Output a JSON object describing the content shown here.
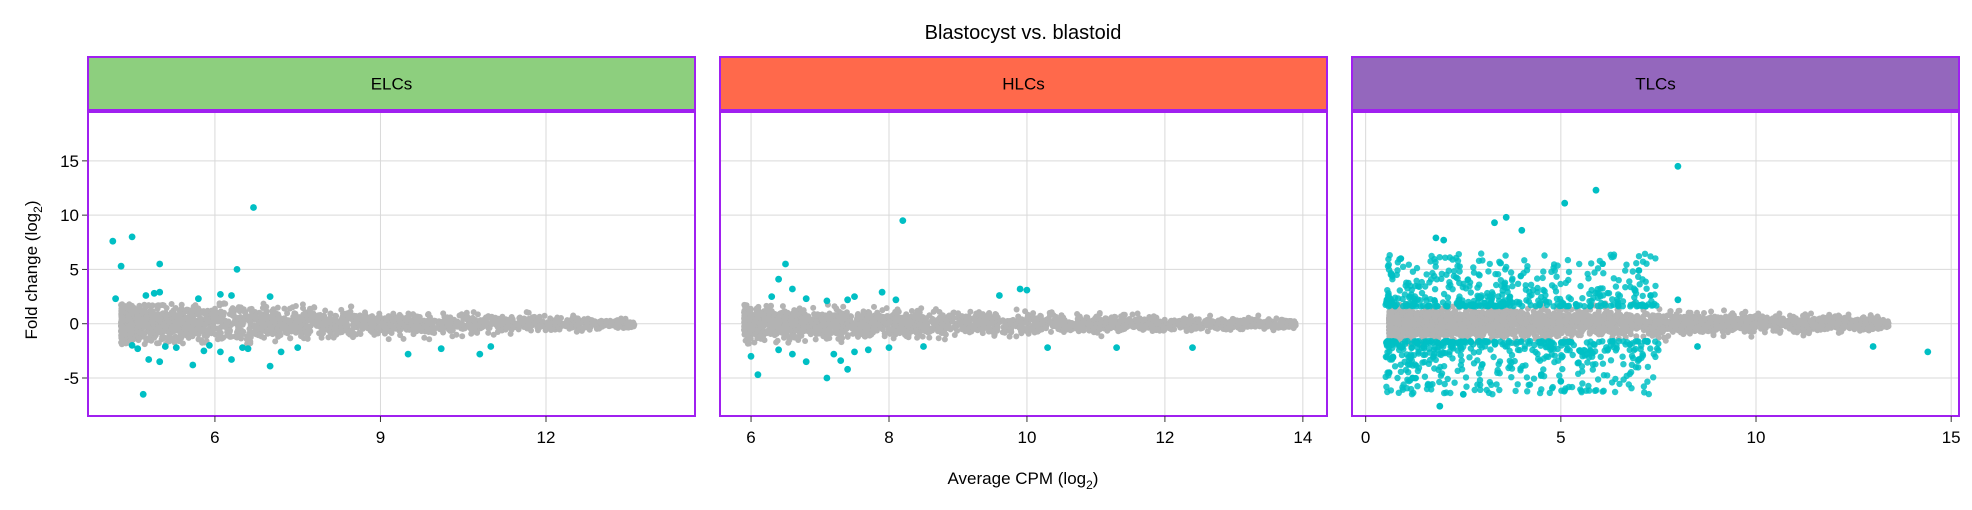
{
  "chart_data": {
    "type": "scatter",
    "title": "Blastocyst vs. blastoid",
    "xlabel": "Average CPM (log",
    "xlabel_sub": "2",
    "xlabel_end": ")",
    "ylabel": "Fold change (log",
    "ylabel_sub": "2",
    "ylabel_end": ")",
    "ylim": [
      -8.5,
      19.5
    ],
    "yticks": [
      15,
      10,
      5,
      0,
      -5
    ],
    "y_tick_labels": [
      "15",
      "10",
      "5",
      "0",
      "-5"
    ],
    "grid": true,
    "colors": {
      "not_significant": "#b3b3b3",
      "significant": "#00bfc4",
      "strip_border": "#a020f0",
      "grid": "#d9d9d9"
    },
    "panels": [
      {
        "label": "ELCs",
        "strip_color": "#8dcf7e",
        "xlim": [
          3.7,
          14.7
        ],
        "xticks": [
          6,
          9,
          12
        ],
        "x_tick_labels": [
          "6",
          "9",
          "12"
        ],
        "bulk": {
          "xmin": 4.3,
          "xmax": 13.6,
          "spread_left": 1.6,
          "spread_right": 0.4
        },
        "significant": [
          [
            4.15,
            7.6
          ],
          [
            4.3,
            5.3
          ],
          [
            4.5,
            8.0
          ],
          [
            4.2,
            2.3
          ],
          [
            5.0,
            5.5
          ],
          [
            4.9,
            2.8
          ],
          [
            4.75,
            2.6
          ],
          [
            5.0,
            2.9
          ],
          [
            5.7,
            2.3
          ],
          [
            6.4,
            5.0
          ],
          [
            6.3,
            2.6
          ],
          [
            6.7,
            10.7
          ],
          [
            7.0,
            2.5
          ],
          [
            6.1,
            2.7
          ],
          [
            4.7,
            -6.5
          ],
          [
            4.8,
            -3.3
          ],
          [
            5.0,
            -3.5
          ],
          [
            4.6,
            -2.3
          ],
          [
            5.3,
            -2.2
          ],
          [
            5.6,
            -3.8
          ],
          [
            5.8,
            -2.5
          ],
          [
            6.1,
            -2.6
          ],
          [
            6.3,
            -3.3
          ],
          [
            6.6,
            -2.3
          ],
          [
            7.0,
            -3.9
          ],
          [
            7.2,
            -2.6
          ],
          [
            7.5,
            -2.2
          ],
          [
            9.5,
            -2.8
          ],
          [
            10.1,
            -2.3
          ],
          [
            10.8,
            -2.8
          ],
          [
            11.0,
            -2.1
          ],
          [
            4.5,
            -2.0
          ],
          [
            5.1,
            -2.1
          ],
          [
            5.9,
            -2.0
          ],
          [
            6.5,
            -2.2
          ]
        ]
      },
      {
        "label": "HLCs",
        "strip_color": "#ff694b",
        "xlim": [
          5.55,
          14.35
        ],
        "xticks": [
          6,
          8,
          10,
          12,
          14
        ],
        "x_tick_labels": [
          "6",
          "8",
          "10",
          "12",
          "14"
        ],
        "bulk": {
          "xmin": 5.9,
          "xmax": 13.9,
          "spread_left": 1.3,
          "spread_right": 0.35
        },
        "significant": [
          [
            6.4,
            4.1
          ],
          [
            6.5,
            5.5
          ],
          [
            6.6,
            3.2
          ],
          [
            6.3,
            2.5
          ],
          [
            6.8,
            2.3
          ],
          [
            7.1,
            2.1
          ],
          [
            7.4,
            2.2
          ],
          [
            7.5,
            2.5
          ],
          [
            7.9,
            2.9
          ],
          [
            8.1,
            2.2
          ],
          [
            8.2,
            9.5
          ],
          [
            9.9,
            3.2
          ],
          [
            9.6,
            2.6
          ],
          [
            10.0,
            3.1
          ],
          [
            6.1,
            -4.7
          ],
          [
            6.0,
            -3.0
          ],
          [
            6.4,
            -2.4
          ],
          [
            6.6,
            -2.8
          ],
          [
            6.8,
            -3.5
          ],
          [
            7.1,
            -5.0
          ],
          [
            7.3,
            -3.4
          ],
          [
            7.5,
            -2.6
          ],
          [
            7.7,
            -2.4
          ],
          [
            7.4,
            -4.2
          ],
          [
            8.0,
            -2.2
          ],
          [
            8.5,
            -2.1
          ],
          [
            10.3,
            -2.2
          ],
          [
            11.3,
            -2.2
          ],
          [
            12.4,
            -2.2
          ],
          [
            7.2,
            -2.8
          ]
        ]
      },
      {
        "label": "TLCs",
        "strip_color": "#9467bd",
        "xlim": [
          -0.35,
          15.2
        ],
        "xticks": [
          0,
          5,
          10,
          15
        ],
        "x_tick_labels": [
          "0",
          "5",
          "10",
          "15"
        ],
        "bulk": {
          "xmin": 0.6,
          "xmax": 13.4,
          "spread_left": 1.3,
          "spread_right": 0.5
        },
        "significant_cloud": {
          "xmin": 0.5,
          "xmax": 7.5,
          "count": 900,
          "ymin_abs": 1.6,
          "ymax_abs": 6.5
        },
        "significant": [
          [
            8.0,
            14.5
          ],
          [
            5.9,
            12.3
          ],
          [
            5.1,
            11.1
          ],
          [
            3.6,
            9.8
          ],
          [
            3.3,
            9.3
          ],
          [
            4.0,
            8.6
          ],
          [
            1.8,
            7.9
          ],
          [
            2.0,
            7.7
          ],
          [
            0.9,
            6.0
          ],
          [
            7.0,
            4.9
          ],
          [
            7.3,
            2.6
          ],
          [
            8.0,
            2.2
          ],
          [
            1.9,
            -7.6
          ],
          [
            2.5,
            -6.5
          ],
          [
            4.5,
            -4.7
          ],
          [
            5.0,
            -5.3
          ],
          [
            7.0,
            -3.3
          ],
          [
            8.5,
            -2.1
          ],
          [
            14.4,
            -2.6
          ],
          [
            13.0,
            -2.1
          ],
          [
            0.6,
            -4.5
          ],
          [
            0.7,
            -3.1
          ],
          [
            1.2,
            -5.0
          ]
        ]
      }
    ]
  }
}
